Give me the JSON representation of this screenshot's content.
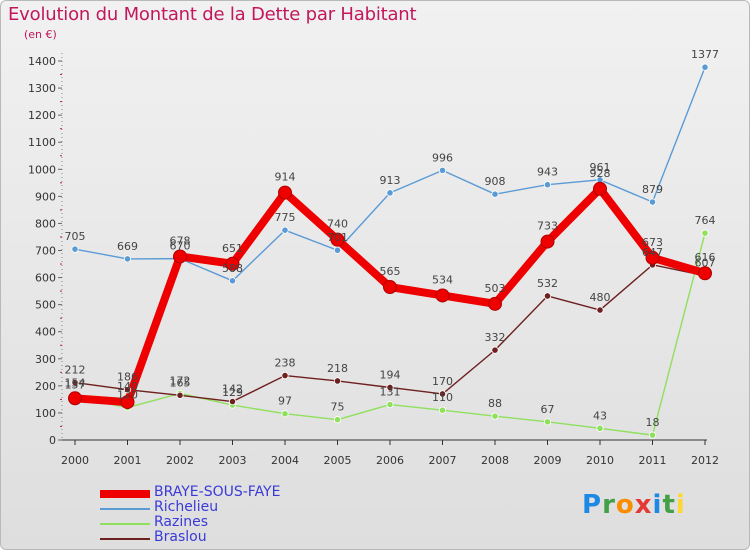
{
  "chart_data": {
    "type": "line",
    "title": "Evolution du Montant de la Dette par Habitant",
    "subtitle": "(en €)",
    "xlabel": "",
    "ylabel": "",
    "ylim": [
      0,
      1400
    ],
    "yticks": [
      0,
      100,
      200,
      300,
      400,
      500,
      600,
      700,
      800,
      900,
      1000,
      1100,
      1200,
      1300,
      1400
    ],
    "grid": false,
    "legend_position": "bottom-left",
    "categories": [
      "2000",
      "2001",
      "2002",
      "2003",
      "2004",
      "2005",
      "2006",
      "2007",
      "2008",
      "2009",
      "2010",
      "2011",
      "2012"
    ],
    "series": [
      {
        "name": "BRAYE-SOUS-FAYE",
        "color": "#ee0000",
        "values": [
          154,
          140,
          678,
          651,
          914,
          740,
          565,
          534,
          503,
          733,
          928,
          673,
          616
        ]
      },
      {
        "name": "Richelieu",
        "color": "#5b9bd5",
        "values": [
          705,
          669,
          670,
          588,
          775,
          701,
          913,
          996,
          908,
          943,
          961,
          879,
          1377
        ]
      },
      {
        "name": "Razines",
        "color": "#8fe05c",
        "values": [
          157,
          120,
          172,
          129,
          97,
          75,
          131,
          110,
          88,
          67,
          43,
          18,
          764
        ]
      },
      {
        "name": "Braslou",
        "color": "#6e1f1f",
        "values": [
          212,
          186,
          165,
          142,
          238,
          218,
          194,
          170,
          332,
          532,
          480,
          647,
          607
        ]
      }
    ]
  },
  "watermark": {
    "letters": [
      "P",
      "r",
      "o",
      "x",
      "i",
      "t",
      "i"
    ]
  }
}
